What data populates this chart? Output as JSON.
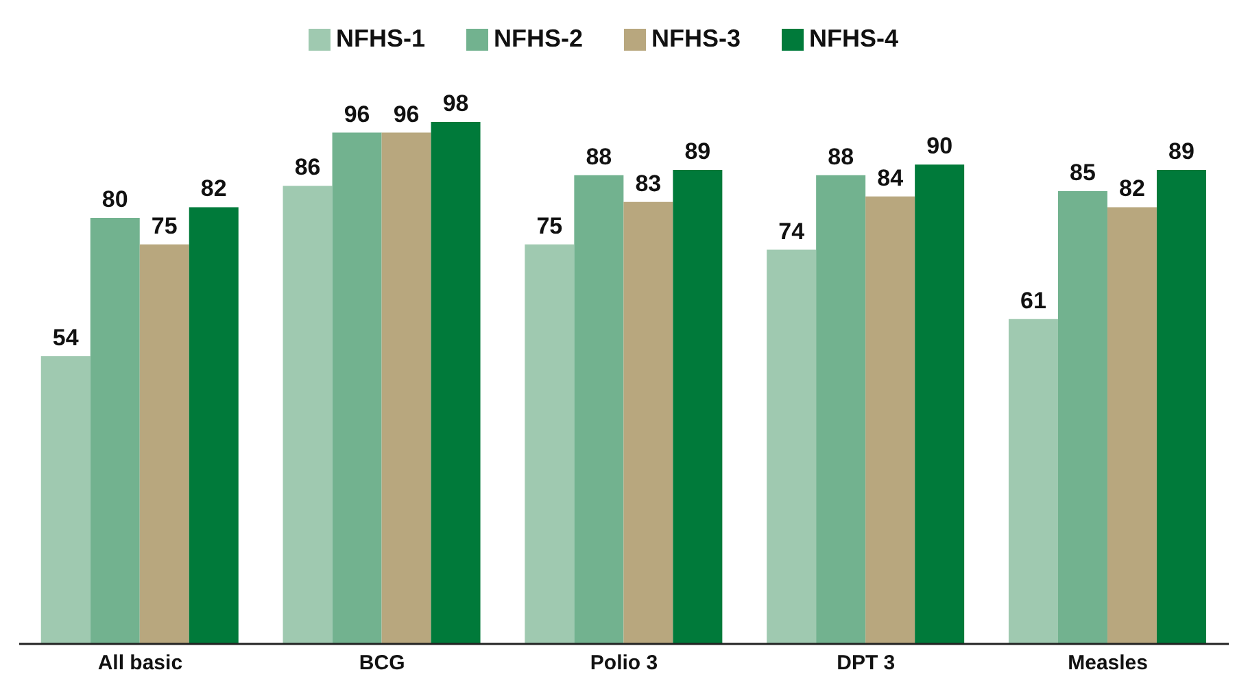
{
  "chart_data": {
    "type": "bar",
    "categories": [
      "All basic",
      "BCG",
      "Polio 3",
      "DPT 3",
      "Measles"
    ],
    "series": [
      {
        "name": "NFHS-1",
        "color": "#9fc9b0",
        "values": [
          54,
          86,
          75,
          74,
          61
        ]
      },
      {
        "name": "NFHS-2",
        "color": "#72b28f",
        "values": [
          80,
          96,
          88,
          88,
          85
        ]
      },
      {
        "name": "NFHS-3",
        "color": "#b8a77e",
        "values": [
          75,
          96,
          83,
          84,
          82
        ]
      },
      {
        "name": "NFHS-4",
        "color": "#007a3a",
        "values": [
          82,
          98,
          89,
          90,
          89
        ]
      }
    ],
    "data_labels": true,
    "legend": "top"
  }
}
